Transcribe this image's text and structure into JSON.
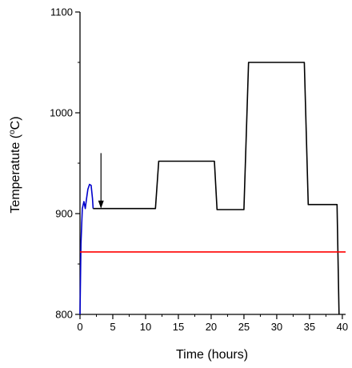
{
  "chart_data": {
    "type": "line",
    "xlabel": "Time  (hours)",
    "ylabel": {
      "pre": "Temperatute  (",
      "sup": "o",
      "post": "C)"
    },
    "xlim": [
      0,
      40.5
    ],
    "ylim": [
      800,
      1100
    ],
    "x_ticks": [
      0,
      5,
      10,
      15,
      20,
      25,
      30,
      35,
      40
    ],
    "y_ticks": [
      800,
      900,
      1000,
      1100
    ],
    "grid": false,
    "series": [
      {
        "color": "#0000cc",
        "points": [
          [
            0,
            800
          ],
          [
            0.15,
            870
          ],
          [
            0.35,
            905
          ],
          [
            0.6,
            912
          ],
          [
            0.8,
            905
          ],
          [
            1.0,
            915
          ],
          [
            1.2,
            924
          ],
          [
            1.45,
            929
          ],
          [
            1.7,
            928
          ],
          [
            1.9,
            915
          ],
          [
            2.0,
            905
          ]
        ]
      },
      {
        "color": "#000000",
        "points": [
          [
            2.0,
            905
          ],
          [
            11.5,
            905
          ],
          [
            12.0,
            952
          ],
          [
            20.5,
            952
          ],
          [
            20.9,
            904
          ],
          [
            25.0,
            904
          ],
          [
            25.7,
            1050
          ],
          [
            34.2,
            1050
          ],
          [
            34.8,
            909
          ],
          [
            39.2,
            909
          ],
          [
            39.5,
            800
          ]
        ]
      },
      {
        "color": "#ff0000",
        "points": [
          [
            0,
            862
          ],
          [
            40.5,
            862
          ]
        ]
      }
    ],
    "annotations": [
      {
        "type": "arrow",
        "x": 3.2,
        "y_from": 960,
        "y_to": 905
      }
    ]
  }
}
